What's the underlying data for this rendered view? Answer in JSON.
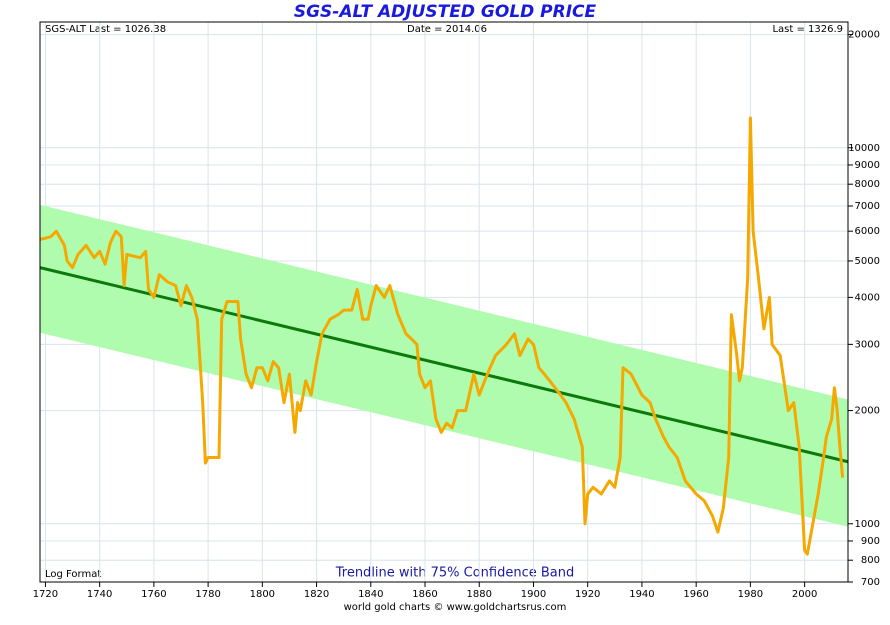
{
  "chart_data": {
    "type": "line",
    "title": "SGS-ALT ADJUSTED  GOLD PRICE",
    "header_left": "SGS-ALT Last = 1026.38",
    "header_center": "Date = 2014.06",
    "header_right": "Last = 1326.9",
    "note_left": "Log Format",
    "note_center": "Trendline with 75% Confidence Band",
    "footer": "world gold charts © www.goldchartsrus.com",
    "log_scale": true,
    "grid": true,
    "xlim": [
      1718,
      2016
    ],
    "xticks": [
      1720,
      1740,
      1760,
      1780,
      1800,
      1820,
      1840,
      1860,
      1880,
      1900,
      1920,
      1940,
      1960,
      1980,
      2000
    ],
    "ylim": [
      700,
      21600
    ],
    "yticks": [
      700,
      800,
      900,
      1000,
      2000,
      3000,
      4000,
      5000,
      6000,
      7000,
      8000,
      9000,
      10000,
      20000
    ],
    "band": {
      "x": [
        1718,
        2016
      ],
      "upper": [
        7050,
        2140
      ],
      "lower": [
        3220,
        982
      ],
      "color": "#b0fcae"
    },
    "trendline": {
      "x": [
        1718,
        2016
      ],
      "values": [
        4800,
        1462
      ],
      "color": "#0b7a0b"
    },
    "series": [
      {
        "color": "#f5a800",
        "x": [
          1718,
          1722,
          1724,
          1727,
          1728,
          1730,
          1732,
          1735,
          1738,
          1740,
          1742,
          1744,
          1746,
          1748,
          1749,
          1750,
          1755,
          1757,
          1758,
          1760,
          1762,
          1765,
          1768,
          1770,
          1772,
          1774,
          1776,
          1778,
          1779,
          1780,
          1784,
          1785,
          1787,
          1791,
          1792,
          1794,
          1796,
          1798,
          1800,
          1802,
          1804,
          1806,
          1808,
          1810,
          1812,
          1813,
          1814,
          1816,
          1818,
          1820,
          1822,
          1825,
          1828,
          1830,
          1833,
          1835,
          1837,
          1839,
          1840,
          1842,
          1845,
          1847,
          1850,
          1853,
          1855,
          1857,
          1858,
          1860,
          1862,
          1864,
          1866,
          1868,
          1870,
          1872,
          1875,
          1878,
          1880,
          1882,
          1884,
          1886,
          1890,
          1893,
          1895,
          1898,
          1900,
          1902,
          1904,
          1906,
          1910,
          1912,
          1915,
          1918,
          1919,
          1920,
          1922,
          1925,
          1928,
          1930,
          1932,
          1933,
          1936,
          1940,
          1943,
          1945,
          1948,
          1950,
          1953,
          1956,
          1960,
          1963,
          1966,
          1968,
          1970,
          1972,
          1973,
          1975,
          1976,
          1977,
          1979,
          1980,
          1981,
          1983,
          1985,
          1987,
          1988,
          1991,
          1994,
          1996,
          1998,
          2000,
          2001,
          2003,
          2005,
          2007,
          2008,
          2010,
          2011,
          2012,
          2013,
          2014
        ],
        "values": [
          5700,
          5800,
          6000,
          5500,
          5000,
          4800,
          5200,
          5500,
          5100,
          5300,
          4900,
          5600,
          6000,
          5800,
          4300,
          5200,
          5100,
          5300,
          4200,
          4000,
          4600,
          4400,
          4300,
          3800,
          4300,
          4000,
          3500,
          2100,
          1450,
          1500,
          1500,
          3500,
          3900,
          3900,
          3100,
          2500,
          2300,
          2600,
          2600,
          2400,
          2700,
          2600,
          2100,
          2500,
          1750,
          2100,
          2000,
          2400,
          2200,
          2700,
          3200,
          3500,
          3600,
          3700,
          3700,
          4200,
          3500,
          3500,
          3800,
          4300,
          4000,
          4300,
          3600,
          3200,
          3100,
          3000,
          2500,
          2300,
          2400,
          1900,
          1750,
          1850,
          1800,
          2000,
          2000,
          2500,
          2200,
          2400,
          2600,
          2800,
          3000,
          3200,
          2800,
          3100,
          3000,
          2600,
          2500,
          2400,
          2200,
          2100,
          1900,
          1600,
          1000,
          1200,
          1250,
          1200,
          1300,
          1250,
          1500,
          2600,
          2500,
          2200,
          2100,
          1900,
          1700,
          1600,
          1500,
          1300,
          1200,
          1150,
          1050,
          950,
          1100,
          1500,
          3600,
          2800,
          2400,
          2600,
          4500,
          12000,
          6000,
          4500,
          3300,
          4000,
          3000,
          2800,
          2000,
          2100,
          1600,
          850,
          830,
          1000,
          1200,
          1500,
          1700,
          1900,
          2300,
          2000,
          1600,
          1326.9
        ]
      }
    ]
  }
}
